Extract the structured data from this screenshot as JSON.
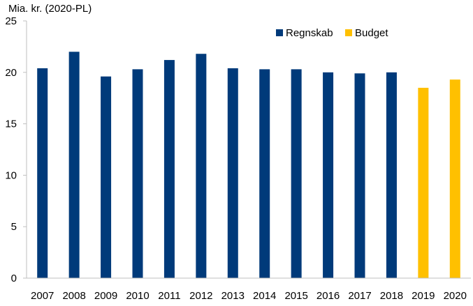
{
  "chart_data": {
    "type": "bar",
    "title": "",
    "ylabel": "Mia. kr. (2020-PL)",
    "xlabel": "",
    "ylim": [
      0,
      25
    ],
    "yticks": [
      0,
      5,
      10,
      15,
      20,
      25
    ],
    "grid": false,
    "legend_position": "top-right",
    "categories": [
      "2007",
      "2008",
      "2009",
      "2010",
      "2011",
      "2012",
      "2013",
      "2014",
      "2015",
      "2016",
      "2017",
      "2018",
      "2019",
      "2020"
    ],
    "values": [
      20.4,
      22.0,
      19.6,
      20.3,
      21.2,
      21.8,
      20.4,
      20.3,
      20.3,
      20.0,
      19.9,
      20.0,
      18.5,
      19.3
    ],
    "series": [
      {
        "name": "Regnskab",
        "color": "#003A7A",
        "categories": [
          "2007",
          "2008",
          "2009",
          "2010",
          "2011",
          "2012",
          "2013",
          "2014",
          "2015",
          "2016",
          "2017",
          "2018"
        ]
      },
      {
        "name": "Budget",
        "color": "#FFC000",
        "categories": [
          "2019",
          "2020"
        ]
      }
    ]
  }
}
